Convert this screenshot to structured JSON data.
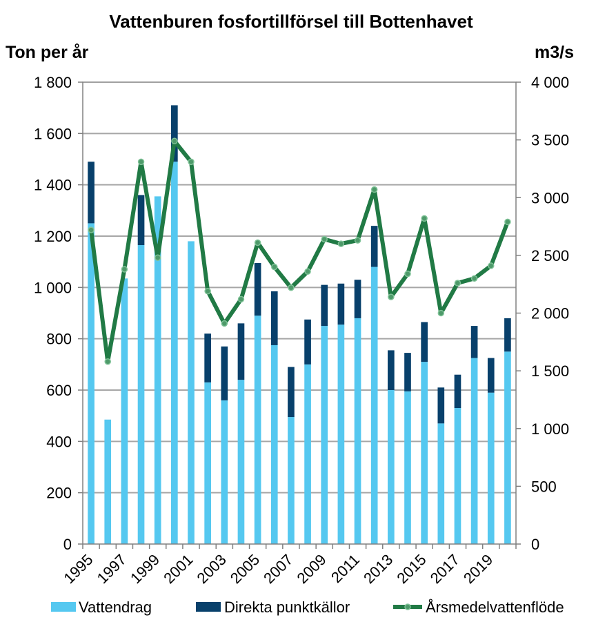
{
  "chart_data": {
    "type": "bar",
    "title": "Vattenburen fosfortillförsel till Bottenhavet",
    "ylabel": "Ton per år",
    "y2label": "m3/s",
    "ylim": [
      0,
      1800
    ],
    "y2lim": [
      0,
      4000
    ],
    "yticks": [
      0,
      200,
      400,
      600,
      800,
      1000,
      1200,
      1400,
      1600,
      1800
    ],
    "yticklabels": [
      "0",
      "200",
      "400",
      "600",
      "800",
      "1 000",
      "1 200",
      "1 400",
      "1 600",
      "1 800"
    ],
    "y2ticks": [
      0,
      500,
      1000,
      1500,
      2000,
      2500,
      3000,
      3500,
      4000
    ],
    "y2ticklabels": [
      "0",
      "500",
      "1 000",
      "1 500",
      "2 000",
      "2 500",
      "3 000",
      "3 500",
      "4 000"
    ],
    "categories": [
      "1995",
      "1996",
      "1997",
      "1998",
      "1999",
      "2000",
      "2001",
      "2002",
      "2003",
      "2004",
      "2005",
      "2006",
      "2007",
      "2008",
      "2009",
      "2010",
      "2011",
      "2012",
      "2013",
      "2014",
      "2015",
      "2016",
      "2017",
      "2018",
      "2019",
      "2020"
    ],
    "xticklabels": [
      "1995",
      "1997",
      "1999",
      "2001",
      "2003",
      "2005",
      "2007",
      "2009",
      "2011",
      "2013",
      "2015",
      "2017",
      "2019"
    ],
    "grid": true,
    "legend_position": "bottom",
    "series": [
      {
        "name": "Vattendrag",
        "kind": "stacked-bar",
        "color": "#55C8F0",
        "values": [
          1250,
          485,
          1035,
          1165,
          1355,
          1490,
          1180,
          630,
          560,
          640,
          890,
          775,
          495,
          700,
          850,
          855,
          880,
          1080,
          600,
          595,
          710,
          470,
          530,
          725,
          590,
          750
        ]
      },
      {
        "name": "Direkta punktkällor",
        "kind": "stacked-bar",
        "color": "#08406B",
        "values": [
          240,
          0,
          0,
          195,
          0,
          220,
          0,
          190,
          210,
          220,
          205,
          210,
          195,
          175,
          160,
          160,
          150,
          160,
          155,
          150,
          155,
          140,
          130,
          125,
          135,
          130
        ]
      },
      {
        "name": "Årsmedelvattenflöde",
        "kind": "line",
        "axis": "secondary",
        "color": "#217A45",
        "values": [
          2720,
          1580,
          2380,
          3310,
          2480,
          3490,
          3310,
          2190,
          1910,
          2120,
          2610,
          2400,
          2220,
          2360,
          2640,
          2600,
          2630,
          3070,
          2140,
          2340,
          2820,
          2000,
          2260,
          2300,
          2410,
          2790
        ]
      }
    ]
  }
}
